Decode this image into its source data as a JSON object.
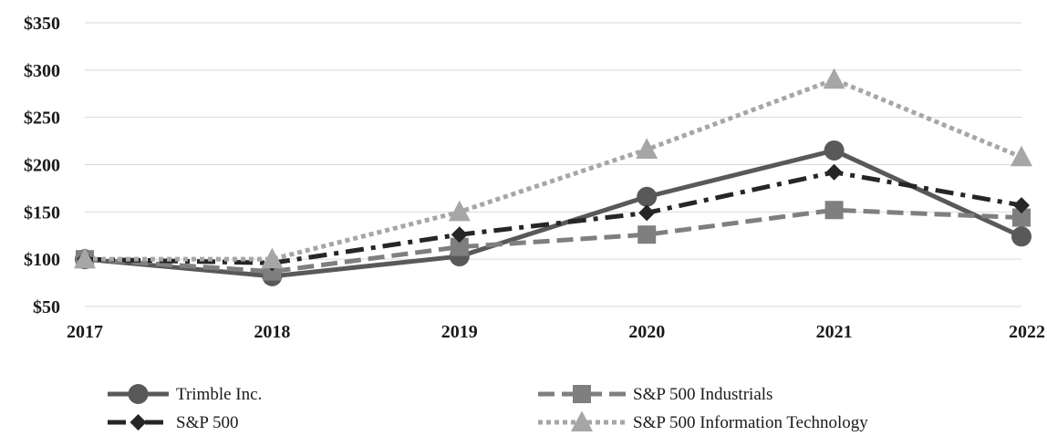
{
  "chart_data": {
    "type": "line",
    "title": "",
    "xlabel": "",
    "ylabel": "",
    "categories": [
      "2017",
      "2018",
      "2019",
      "2020",
      "2021",
      "2022"
    ],
    "ylim": [
      50,
      350
    ],
    "y_ticks": [
      50,
      100,
      150,
      200,
      250,
      300,
      350
    ],
    "y_tick_labels": [
      "$50",
      "$100",
      "$150",
      "$200",
      "$250",
      "$300",
      "$350"
    ],
    "grid": true,
    "legend_position": "bottom",
    "series": [
      {
        "name": "Trimble Inc.",
        "values": [
          100,
          82,
          103,
          166,
          215,
          124
        ],
        "color": "#595959",
        "dash": "solid",
        "marker": "circle"
      },
      {
        "name": "S&P 500 Industrials",
        "values": [
          100,
          87,
          113,
          126,
          152,
          144
        ],
        "color": "#7f7f7f",
        "dash": "dash",
        "marker": "square"
      },
      {
        "name": "S&P 500",
        "values": [
          100,
          96,
          126,
          149,
          192,
          157
        ],
        "color": "#262626",
        "dash": "dashdot",
        "marker": "diamond"
      },
      {
        "name": "S&P 500 Information Technology",
        "values": [
          100,
          100,
          150,
          216,
          290,
          208
        ],
        "color": "#a6a6a6",
        "dash": "dot",
        "marker": "triangle"
      }
    ]
  }
}
